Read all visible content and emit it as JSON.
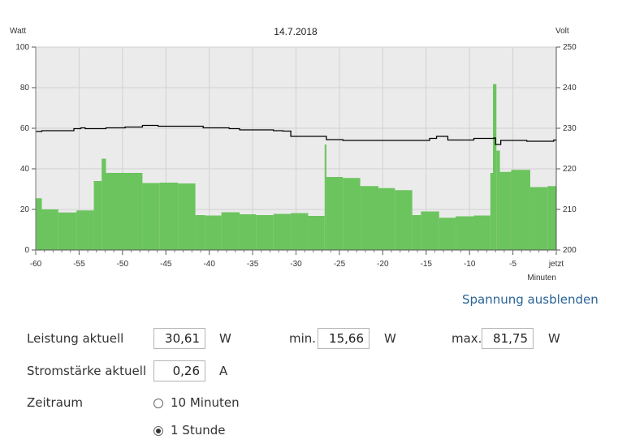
{
  "chart_data": {
    "type": "bar",
    "title": "14.7.2018",
    "ylabel_left": "Watt",
    "ylabel_right": "Volt",
    "xlabel": "Minuten",
    "xlim": [
      -60,
      0
    ],
    "ylim_left": [
      0,
      100
    ],
    "ylim_right": [
      200,
      250
    ],
    "x_ticks": [
      -60,
      -55,
      -50,
      -45,
      -40,
      -35,
      -30,
      -25,
      -20,
      -15,
      -10,
      -5,
      0
    ],
    "x_tick_labels": [
      "-60",
      "-55",
      "-50",
      "-45",
      "-40",
      "-35",
      "-30",
      "-25",
      "-20",
      "-15",
      "-10",
      "-5",
      "jetzt"
    ],
    "y_ticks_left": [
      0,
      20,
      40,
      60,
      80,
      100
    ],
    "y_ticks_right": [
      200,
      210,
      220,
      230,
      240,
      250
    ],
    "grid": true,
    "bar_color": "#6cc45e",
    "line_color": "#000000",
    "plot_background": "#ebebeb",
    "power_series": {
      "name": "Leistung",
      "unit": "W",
      "segments": [
        {
          "from": -60,
          "to": -59.3,
          "value": 25.5
        },
        {
          "from": -59.3,
          "to": -57.4,
          "value": 20
        },
        {
          "from": -57.4,
          "to": -55.3,
          "value": 18.5
        },
        {
          "from": -55.3,
          "to": -53.3,
          "value": 19.5
        },
        {
          "from": -53.3,
          "to": -52.4,
          "value": 34
        },
        {
          "from": -52.4,
          "to": -51.9,
          "value": 45
        },
        {
          "from": -51.9,
          "to": -47.7,
          "value": 38
        },
        {
          "from": -47.7,
          "to": -45.7,
          "value": 33
        },
        {
          "from": -45.7,
          "to": -43.6,
          "value": 33.2
        },
        {
          "from": -43.6,
          "to": -41.6,
          "value": 32.8
        },
        {
          "from": -41.6,
          "to": -40.5,
          "value": 17.2
        },
        {
          "from": -40.5,
          "to": -38.6,
          "value": 17
        },
        {
          "from": -38.6,
          "to": -36.5,
          "value": 18.6
        },
        {
          "from": -36.5,
          "to": -34.6,
          "value": 17.6
        },
        {
          "from": -34.6,
          "to": -32.6,
          "value": 17.2
        },
        {
          "from": -32.6,
          "to": -30.6,
          "value": 17.8
        },
        {
          "from": -30.6,
          "to": -28.6,
          "value": 18.2
        },
        {
          "from": -28.6,
          "to": -26.7,
          "value": 16.8
        },
        {
          "from": -26.7,
          "to": -26.5,
          "value": 52
        },
        {
          "from": -26.5,
          "to": -24.6,
          "value": 36
        },
        {
          "from": -24.6,
          "to": -22.6,
          "value": 35.5
        },
        {
          "from": -22.6,
          "to": -20.5,
          "value": 31.5
        },
        {
          "from": -20.5,
          "to": -18.6,
          "value": 30.5
        },
        {
          "from": -18.6,
          "to": -16.6,
          "value": 29.5
        },
        {
          "from": -16.6,
          "to": -15.6,
          "value": 17.2
        },
        {
          "from": -15.6,
          "to": -13.5,
          "value": 19
        },
        {
          "from": -13.5,
          "to": -11.6,
          "value": 15.9
        },
        {
          "from": -11.6,
          "to": -9.5,
          "value": 16.6
        },
        {
          "from": -9.5,
          "to": -7.6,
          "value": 17
        },
        {
          "from": -7.6,
          "to": -7.3,
          "value": 38
        },
        {
          "from": -7.3,
          "to": -6.9,
          "value": 81.75
        },
        {
          "from": -6.9,
          "to": -6.5,
          "value": 49
        },
        {
          "from": -6.5,
          "to": -5.2,
          "value": 38.5
        },
        {
          "from": -5.2,
          "to": -3.0,
          "value": 39.5
        },
        {
          "from": -3.0,
          "to": -1.0,
          "value": 31
        },
        {
          "from": -1.0,
          "to": 0,
          "value": 31.5
        }
      ]
    },
    "voltage_series": {
      "name": "Spannung",
      "unit": "V",
      "points": [
        [
          -60,
          229.2
        ],
        [
          -59.3,
          229.4
        ],
        [
          -55.6,
          229.9
        ],
        [
          -54.8,
          230.1
        ],
        [
          -54.3,
          229.9
        ],
        [
          -51.9,
          230.1
        ],
        [
          -49.7,
          230.3
        ],
        [
          -47.7,
          230.7
        ],
        [
          -45.9,
          230.5
        ],
        [
          -44.6,
          230.5
        ],
        [
          -40.7,
          230.1
        ],
        [
          -37.7,
          229.9
        ],
        [
          -36.5,
          229.6
        ],
        [
          -32.6,
          229.4
        ],
        [
          -31.5,
          229.3
        ],
        [
          -30.6,
          228.0
        ],
        [
          -28.6,
          228.0
        ],
        [
          -26.5,
          227.2
        ],
        [
          -25.6,
          227.2
        ],
        [
          -24.6,
          227.0
        ],
        [
          -21.6,
          227.0
        ],
        [
          -15.6,
          227.0
        ],
        [
          -14.6,
          227.5
        ],
        [
          -13.8,
          228.0
        ],
        [
          -12.6,
          228.0
        ],
        [
          -12.5,
          227.1
        ],
        [
          -10.4,
          227.1
        ],
        [
          -9.5,
          227.5
        ],
        [
          -7.2,
          227.6
        ],
        [
          -7.0,
          226.0
        ],
        [
          -6.5,
          226.0
        ],
        [
          -6.4,
          227.0
        ],
        [
          -4.3,
          227.0
        ],
        [
          -3.4,
          226.8
        ],
        [
          -0.7,
          226.8
        ],
        [
          -0.3,
          227.1
        ],
        [
          0,
          226.9
        ]
      ]
    }
  },
  "controls": {
    "toggle_voltage_link": "Spannung ausblenden",
    "power_label": "Leistung aktuell",
    "power_value": "30,61",
    "power_unit": "W",
    "min_label": "min.",
    "min_value": "15,66",
    "min_unit": "W",
    "max_label": "max.",
    "max_value": "81,75",
    "max_unit": "W",
    "current_label": "Stromstärke aktuell",
    "current_value": "0,26",
    "current_unit": "A",
    "timespan_label": "Zeitraum",
    "option_10min": "10 Minuten",
    "option_1h": "1 Stunde",
    "selected_option": "1 Stunde"
  }
}
